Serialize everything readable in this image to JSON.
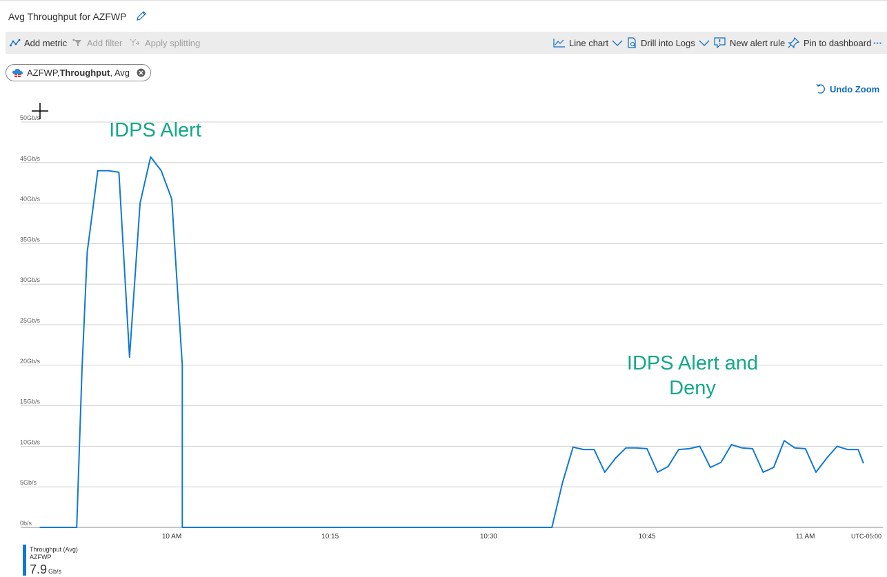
{
  "header": {
    "title": "Avg Throughput for AZFWP",
    "edit_icon": "pencil-icon"
  },
  "toolbar": {
    "add_metric": "Add metric",
    "add_filter": "Add filter",
    "apply_splitting": "Apply splitting",
    "line_chart": "Line chart",
    "drill_into_logs": "Drill into Logs",
    "new_alert_rule": "New alert rule",
    "pin_to_dashboard": "Pin to dashboard",
    "more": "···"
  },
  "metric_pill": {
    "resource": "AZFWP, ",
    "metric": "Throughput",
    "aggregation": ", Avg"
  },
  "undo_zoom": "Undo Zoom",
  "annotations": {
    "first": "IDPS Alert",
    "second_line1": "IDPS Alert and",
    "second_line2": "Deny"
  },
  "legend": {
    "name": "Throughput (Avg)",
    "resource": "AZFWP",
    "value": "7.9",
    "unit": "Gb/s"
  },
  "colors": {
    "series": "#0f78d4",
    "annotation": "#14a88a",
    "grid": "#d0d0d0"
  },
  "chart_data": {
    "type": "line",
    "title": "Avg Throughput for AZFWP",
    "ylabel": "",
    "xlabel": "",
    "ylim": [
      0,
      50
    ],
    "y_ticks": [
      "0b/s",
      "5Gb/s",
      "10Gb/s",
      "15Gb/s",
      "20Gb/s",
      "25Gb/s",
      "30Gb/s",
      "35Gb/s",
      "40Gb/s",
      "45Gb/s",
      "50Gb/s"
    ],
    "x_ticks": [
      {
        "label": "10 AM",
        "minute": 0
      },
      {
        "label": "10:15",
        "minute": 15
      },
      {
        "label": "10:30",
        "minute": 30
      },
      {
        "label": "10:45",
        "minute": 45
      },
      {
        "label": "11 AM",
        "minute": 60
      }
    ],
    "timezone_label": "UTC-05:00",
    "x_unit": "minutes after 10 AM",
    "grid": true,
    "series": [
      {
        "name": "Throughput (Avg)",
        "points": [
          [
            -12.5,
            0
          ],
          [
            -9.0,
            0
          ],
          [
            -8.5,
            19.5
          ],
          [
            -8.0,
            34
          ],
          [
            -7.5,
            39
          ],
          [
            -7.0,
            44
          ],
          [
            -6.0,
            44
          ],
          [
            -5.0,
            43.8
          ],
          [
            -4.0,
            21
          ],
          [
            -3.0,
            40
          ],
          [
            -2.0,
            45.7
          ],
          [
            -1.0,
            44
          ],
          [
            0.0,
            40.5
          ],
          [
            1.0,
            20
          ],
          [
            1.0,
            0
          ],
          [
            15.0,
            0
          ],
          [
            30.0,
            0
          ],
          [
            36.0,
            0
          ],
          [
            37.0,
            5.5
          ],
          [
            38.0,
            9.9
          ],
          [
            39.0,
            9.6
          ],
          [
            40.0,
            9.6
          ],
          [
            41.0,
            6.8
          ],
          [
            42.0,
            8.5
          ],
          [
            43.0,
            9.8
          ],
          [
            44.0,
            9.8
          ],
          [
            45.0,
            9.7
          ],
          [
            46.0,
            6.8
          ],
          [
            47.0,
            7.5
          ],
          [
            48.0,
            9.6
          ],
          [
            49.0,
            9.7
          ],
          [
            50.0,
            10.0
          ],
          [
            51.0,
            7.4
          ],
          [
            52.0,
            8.0
          ],
          [
            53.0,
            10.2
          ],
          [
            54.0,
            9.8
          ],
          [
            55.0,
            9.7
          ],
          [
            56.0,
            6.8
          ],
          [
            57.0,
            7.4
          ],
          [
            58.0,
            10.7
          ],
          [
            59.0,
            9.8
          ],
          [
            60.0,
            9.7
          ],
          [
            61.0,
            6.8
          ],
          [
            62.0,
            8.5
          ],
          [
            63.0,
            10.0
          ],
          [
            64.0,
            9.6
          ],
          [
            65.0,
            9.6
          ],
          [
            65.5,
            7.9
          ]
        ]
      }
    ]
  }
}
